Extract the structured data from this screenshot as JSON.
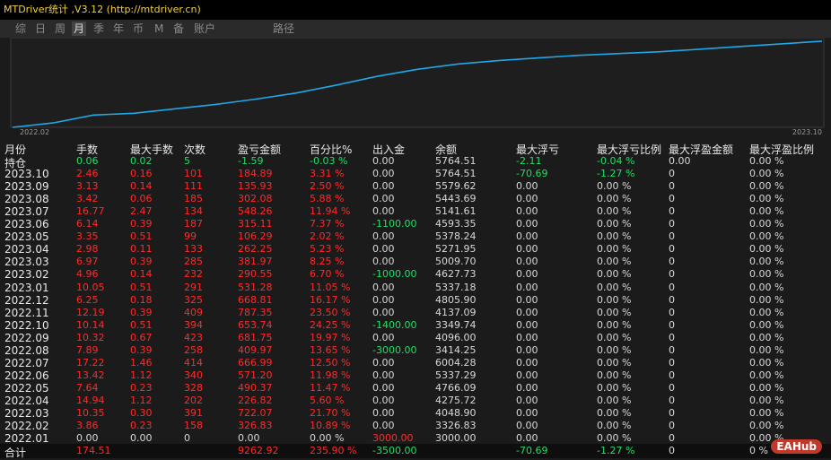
{
  "header": {
    "title": "MTDriver统计 ,V3.12 (http://mtdriver.cn)"
  },
  "tabs": {
    "items": [
      "综",
      "日",
      "周",
      "月",
      "季",
      "年",
      "币",
      "M",
      "备",
      "账户",
      "路径"
    ],
    "active": 3
  },
  "chart_data": {
    "type": "line",
    "color": "#1fa8e8",
    "ylim": [
      0,
      100
    ],
    "categories": [
      "2022.02",
      null,
      null,
      null,
      null,
      null,
      null,
      null,
      null,
      null,
      null,
      null,
      null,
      null,
      null,
      null,
      null,
      null,
      null,
      null,
      "2023.10"
    ],
    "values": [
      0,
      5,
      14,
      16,
      21,
      26,
      32,
      39,
      48,
      58,
      66,
      72,
      76,
      79,
      82,
      84,
      86,
      89,
      92,
      95,
      98
    ]
  },
  "table": {
    "columns": [
      "月份",
      "手数",
      "最大手数",
      "次数",
      "盈亏金额",
      "百分比%",
      "出入金",
      "余额",
      "最大浮亏",
      "最大浮亏比例",
      "最大浮盈金额",
      "最大浮盈比例"
    ],
    "rows": [
      {
        "color": "#22dd66",
        "cells": [
          "持仓",
          "0.06",
          "0.02",
          "5",
          "-1.59",
          "-0.03 %",
          "0.00",
          "5764.51",
          "-2.11",
          "-0.04 %",
          "0.00",
          "0.00 %"
        ]
      },
      {
        "color": "#ff2a2a",
        "cells": [
          "2023.10",
          "2.46",
          "0.16",
          "101",
          "184.89",
          "3.31 %",
          "0.00",
          "5764.51",
          "-70.69",
          "-1.27 %",
          "0",
          "0.00 %"
        ]
      },
      {
        "color": "#ff2a2a",
        "cells": [
          "2023.09",
          "3.13",
          "0.14",
          "111",
          "135.93",
          "2.50 %",
          "0.00",
          "5579.62",
          "0.00",
          "0.00 %",
          "0",
          "0.00 %"
        ]
      },
      {
        "color": "#ff2a2a",
        "cells": [
          "2023.08",
          "3.42",
          "0.06",
          "185",
          "302.08",
          "5.88 %",
          "0.00",
          "5443.69",
          "0.00",
          "0.00 %",
          "0",
          "0.00 %"
        ]
      },
      {
        "color": "#ff2a2a",
        "cells": [
          "2023.07",
          "16.77",
          "2.47",
          "134",
          "548.26",
          "11.94 %",
          "0.00",
          "5141.61",
          "0.00",
          "0.00 %",
          "0",
          "0.00 %"
        ]
      },
      {
        "color": "#ff2a2a",
        "cells": [
          "2023.06",
          "6.14",
          "0.39",
          "187",
          "315.11",
          "7.37 %",
          "-1100.00",
          "4593.35",
          "0.00",
          "0.00 %",
          "0",
          "0.00 %"
        ]
      },
      {
        "color": "#ff2a2a",
        "cells": [
          "2023.05",
          "3.35",
          "0.51",
          "99",
          "106.29",
          "2.02 %",
          "0.00",
          "5378.24",
          "0.00",
          "0.00 %",
          "0",
          "0.00 %"
        ]
      },
      {
        "color": "#ff2a2a",
        "cells": [
          "2023.04",
          "2.98",
          "0.11",
          "133",
          "262.25",
          "5.23 %",
          "0.00",
          "5271.95",
          "0.00",
          "0.00 %",
          "0",
          "0.00 %"
        ]
      },
      {
        "color": "#ff2a2a",
        "cells": [
          "2023.03",
          "6.97",
          "0.39",
          "285",
          "381.97",
          "8.25 %",
          "0.00",
          "5009.70",
          "0.00",
          "0.00 %",
          "0",
          "0.00 %"
        ]
      },
      {
        "color": "#ff2a2a",
        "cells": [
          "2023.02",
          "4.96",
          "0.14",
          "232",
          "290.55",
          "6.70 %",
          "-1000.00",
          "4627.73",
          "0.00",
          "0.00 %",
          "0",
          "0.00 %"
        ]
      },
      {
        "color": "#ff2a2a",
        "cells": [
          "2023.01",
          "10.05",
          "0.51",
          "291",
          "531.28",
          "11.05 %",
          "0.00",
          "5337.18",
          "0.00",
          "0.00 %",
          "0",
          "0.00 %"
        ]
      },
      {
        "color": "#ff2a2a",
        "cells": [
          "2022.12",
          "6.25",
          "0.18",
          "325",
          "668.81",
          "16.17 %",
          "0.00",
          "4805.90",
          "0.00",
          "0.00 %",
          "0",
          "0.00 %"
        ]
      },
      {
        "color": "#ff2a2a",
        "cells": [
          "2022.11",
          "12.19",
          "0.39",
          "409",
          "787.35",
          "23.50 %",
          "0.00",
          "4137.09",
          "0.00",
          "0.00 %",
          "0",
          "0.00 %"
        ]
      },
      {
        "color": "#ff2a2a",
        "cells": [
          "2022.10",
          "10.14",
          "0.51",
          "394",
          "653.74",
          "24.25 %",
          "-1400.00",
          "3349.74",
          "0.00",
          "0.00 %",
          "0",
          "0.00 %"
        ]
      },
      {
        "color": "#ff2a2a",
        "cells": [
          "2022.09",
          "10.32",
          "0.67",
          "423",
          "681.75",
          "19.97 %",
          "0.00",
          "4096.00",
          "0.00",
          "0.00 %",
          "0",
          "0.00 %"
        ]
      },
      {
        "color": "#ff2a2a",
        "cells": [
          "2022.08",
          "7.89",
          "0.39",
          "258",
          "409.97",
          "13.65 %",
          "-3000.00",
          "3414.25",
          "0.00",
          "0.00 %",
          "0",
          "0.00 %"
        ]
      },
      {
        "color": "#ff2a2a",
        "cells": [
          "2022.07",
          "17.22",
          "1.46",
          "414",
          "666.99",
          "12.50 %",
          "0.00",
          "6004.28",
          "0.00",
          "0.00 %",
          "0",
          "0.00 %"
        ]
      },
      {
        "color": "#ff2a2a",
        "cells": [
          "2022.06",
          "13.42",
          "1.12",
          "340",
          "571.20",
          "11.98 %",
          "0.00",
          "5337.29",
          "0.00",
          "0.00 %",
          "0",
          "0.00 %"
        ]
      },
      {
        "color": "#ff2a2a",
        "cells": [
          "2022.05",
          "7.64",
          "0.23",
          "328",
          "490.37",
          "11.47 %",
          "0.00",
          "4766.09",
          "0.00",
          "0.00 %",
          "0",
          "0.00 %"
        ]
      },
      {
        "color": "#ff2a2a",
        "cells": [
          "2022.04",
          "14.94",
          "1.12",
          "202",
          "226.82",
          "5.60 %",
          "0.00",
          "4275.72",
          "0.00",
          "0.00 %",
          "0",
          "0.00 %"
        ]
      },
      {
        "color": "#ff2a2a",
        "cells": [
          "2022.03",
          "10.35",
          "0.30",
          "391",
          "722.07",
          "21.70 %",
          "0.00",
          "4048.90",
          "0.00",
          "0.00 %",
          "0",
          "0.00 %"
        ]
      },
      {
        "color": "#ff2a2a",
        "cells": [
          "2022.02",
          "3.86",
          "0.23",
          "158",
          "326.83",
          "10.89 %",
          "0.00",
          "3326.83",
          "0.00",
          "0.00 %",
          "0",
          "0.00 %"
        ]
      },
      {
        "color": "#d8d8d8",
        "cells": [
          "2022.01",
          "0.00",
          "0.00",
          "0",
          "0.00",
          "0.00 %",
          "3000.00",
          "3000.00",
          "0.00",
          "0.00 %",
          "0",
          "0.00 %"
        ]
      },
      {
        "color": "#ff2a2a",
        "cells": [
          "合计",
          "174.51",
          null,
          null,
          "9262.92",
          "235.90 %",
          "-3500.00",
          null,
          "-70.69",
          "-1.27 %",
          "0",
          "0 %"
        ]
      }
    ]
  },
  "watermark": "EAHub"
}
